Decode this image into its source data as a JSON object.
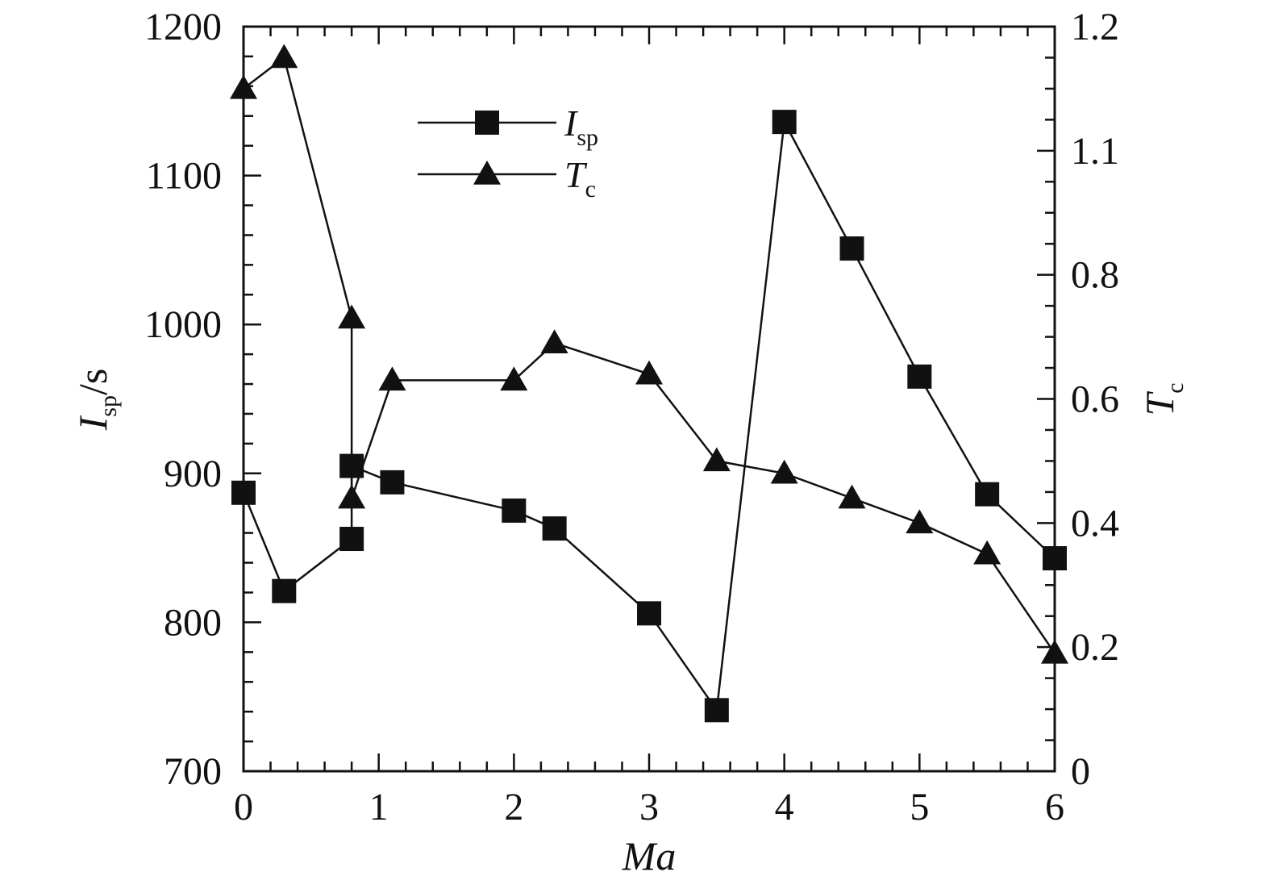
{
  "chart_data": {
    "type": "line",
    "xlabel": "Ma",
    "ylabel": {
      "main": "I",
      "sub": "sp",
      "unit": "/s"
    },
    "y2label": {
      "main": "T",
      "sub": "c"
    },
    "xlim": [
      0,
      6
    ],
    "ylim": [
      700,
      1200
    ],
    "y2lim": [
      0,
      1.2
    ],
    "grid": false,
    "legend_position": "top-center",
    "x_ticks": [
      "0",
      "1",
      "2",
      "3",
      "4",
      "5",
      "6"
    ],
    "y_ticks": [
      "700",
      "800",
      "900",
      "1000",
      "1100",
      "1200"
    ],
    "y2_ticks": [
      "0",
      "0.2",
      "0.4",
      "0.6",
      "0.8",
      "1.1",
      "1.2"
    ],
    "series": [
      {
        "name": "I_sp",
        "label_main": "I",
        "label_sub": "sp",
        "axis": "left",
        "marker": "square",
        "x": [
          0,
          0.3,
          0.8,
          0.8,
          1.1,
          2,
          2.3,
          3,
          3.5,
          4,
          4.5,
          5,
          5.5,
          6
        ],
        "y": [
          887,
          821,
          856,
          905,
          894,
          875,
          863,
          806,
          741,
          1136,
          1051,
          965,
          886,
          843
        ]
      },
      {
        "name": "T_c",
        "label_main": "T",
        "label_sub": "c",
        "axis": "right",
        "marker": "triangle",
        "x": [
          0,
          0.3,
          0.8,
          0.8,
          1.1,
          2,
          2.3,
          3,
          3.5,
          4,
          4.5,
          5,
          5.5,
          6
        ],
        "y": [
          1.1,
          1.15,
          0.73,
          0.44,
          0.63,
          0.63,
          0.69,
          0.64,
          0.5,
          0.48,
          0.44,
          0.4,
          0.35,
          0.19
        ]
      }
    ]
  }
}
